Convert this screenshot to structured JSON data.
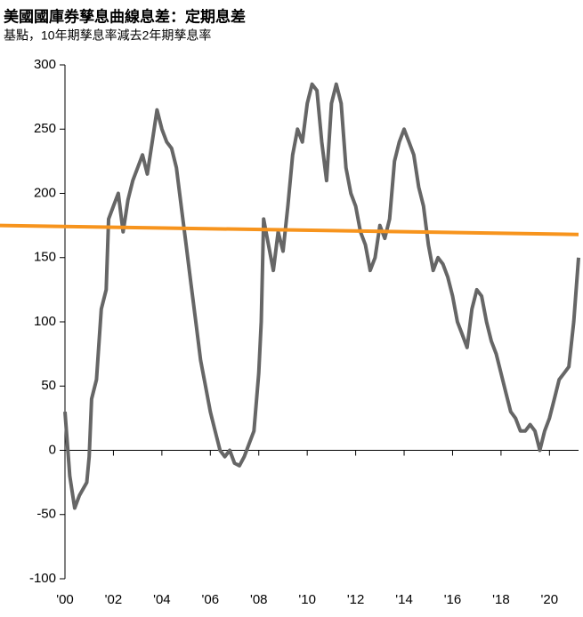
{
  "chart_data": {
    "type": "line",
    "title": "美國國庫券孳息曲線息差：定期息差",
    "subtitle": "基點，10年期孳息率減去2年期孳息率",
    "x": [
      2000.0,
      2000.2,
      2000.4,
      2000.6,
      2000.9,
      2001.0,
      2001.1,
      2001.3,
      2001.5,
      2001.7,
      2001.8,
      2002.0,
      2002.2,
      2002.4,
      2002.6,
      2002.8,
      2003.0,
      2003.2,
      2003.4,
      2003.6,
      2003.8,
      2004.0,
      2004.2,
      2004.4,
      2004.6,
      2004.8,
      2005.0,
      2005.2,
      2005.4,
      2005.6,
      2005.8,
      2006.0,
      2006.2,
      2006.4,
      2006.6,
      2006.8,
      2007.0,
      2007.2,
      2007.4,
      2007.6,
      2007.8,
      2008.0,
      2008.1,
      2008.2,
      2008.4,
      2008.6,
      2008.8,
      2009.0,
      2009.2,
      2009.4,
      2009.6,
      2009.8,
      2010.0,
      2010.2,
      2010.4,
      2010.6,
      2010.8,
      2011.0,
      2011.2,
      2011.4,
      2011.6,
      2011.8,
      2012.0,
      2012.2,
      2012.4,
      2012.6,
      2012.8,
      2013.0,
      2013.2,
      2013.4,
      2013.6,
      2013.8,
      2014.0,
      2014.2,
      2014.4,
      2014.6,
      2014.8,
      2015.0,
      2015.2,
      2015.4,
      2015.6,
      2015.8,
      2016.0,
      2016.2,
      2016.4,
      2016.6,
      2016.8,
      2017.0,
      2017.2,
      2017.4,
      2017.6,
      2017.8,
      2018.0,
      2018.2,
      2018.4,
      2018.6,
      2018.8,
      2019.0,
      2019.2,
      2019.4,
      2019.6,
      2019.8,
      2020.0,
      2020.2,
      2020.4,
      2020.6,
      2020.8,
      2021.0,
      2021.2
    ],
    "series": [
      {
        "color": "#666666",
        "values": [
          30,
          -20,
          -45,
          -35,
          -25,
          -5,
          40,
          55,
          110,
          125,
          180,
          190,
          200,
          170,
          195,
          210,
          220,
          230,
          215,
          240,
          265,
          250,
          240,
          235,
          220,
          190,
          160,
          130,
          100,
          70,
          50,
          30,
          15,
          0,
          -5,
          0,
          -10,
          -12,
          -5,
          5,
          15,
          60,
          100,
          180,
          160,
          140,
          170,
          155,
          190,
          230,
          250,
          240,
          270,
          285,
          280,
          240,
          210,
          270,
          285,
          270,
          220,
          200,
          190,
          170,
          160,
          140,
          150,
          175,
          165,
          180,
          225,
          240,
          250,
          240,
          230,
          205,
          190,
          160,
          140,
          150,
          145,
          135,
          120,
          100,
          90,
          80,
          110,
          125,
          120,
          100,
          85,
          75,
          60,
          45,
          30,
          25,
          15,
          15,
          20,
          15,
          0,
          15,
          25,
          40,
          55,
          60,
          65,
          100,
          150
        ]
      }
    ],
    "trend_line": {
      "x": [
        1997.3,
        2021.2
      ],
      "values": [
        175,
        168
      ],
      "color": "#f7941d"
    },
    "xlim": [
      2000,
      2021.2
    ],
    "xticks": [
      {
        "value": 2000,
        "label": "'00"
      },
      {
        "value": 2002,
        "label": "'02"
      },
      {
        "value": 2004,
        "label": "'04"
      },
      {
        "value": 2006,
        "label": "'06"
      },
      {
        "value": 2008,
        "label": "'08"
      },
      {
        "value": 2010,
        "label": "'10"
      },
      {
        "value": 2012,
        "label": "'12"
      },
      {
        "value": 2014,
        "label": "'14"
      },
      {
        "value": 2016,
        "label": "'16"
      },
      {
        "value": 2018,
        "label": "'18"
      },
      {
        "value": 2020,
        "label": "'20"
      }
    ],
    "ylim": [
      -100,
      300
    ],
    "yticks": [
      -100,
      -50,
      0,
      50,
      100,
      150,
      200,
      250,
      300
    ]
  }
}
